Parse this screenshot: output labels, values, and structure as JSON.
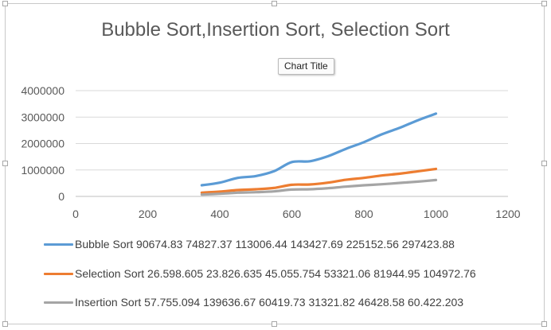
{
  "chart_data": {
    "type": "line",
    "title": "Bubble Sort,Insertion Sort, Selection Sort",
    "tooltip": "Chart Title",
    "xlabel": "",
    "ylabel": "",
    "xlim": [
      0,
      1200
    ],
    "ylim": [
      0,
      4000000
    ],
    "x_ticks": [
      "0",
      "200",
      "400",
      "600",
      "800",
      "1000",
      "1200"
    ],
    "y_ticks": [
      "0",
      "1000000",
      "2000000",
      "3000000",
      "4000000"
    ],
    "grid": true,
    "legend_position": "bottom",
    "series": [
      {
        "name": "Bubble Sort 90674.83 74827.37 113006.44 143427.69 225152.56 297423.88",
        "color": "#5b9bd5",
        "points": [
          [
            350,
            420000
          ],
          [
            400,
            520000
          ],
          [
            450,
            700000
          ],
          [
            500,
            770000
          ],
          [
            550,
            950000
          ],
          [
            600,
            1300000
          ],
          [
            650,
            1330000
          ],
          [
            700,
            1520000
          ],
          [
            750,
            1800000
          ],
          [
            800,
            2050000
          ],
          [
            850,
            2350000
          ],
          [
            900,
            2600000
          ],
          [
            950,
            2880000
          ],
          [
            1000,
            3130000
          ]
        ]
      },
      {
        "name": "Selection Sort 26.598.605 23.826.635 45.055.754 53321.06 81944.95 104972.76",
        "color": "#ed7d31",
        "points": [
          [
            350,
            140000
          ],
          [
            400,
            180000
          ],
          [
            450,
            240000
          ],
          [
            500,
            270000
          ],
          [
            550,
            320000
          ],
          [
            600,
            440000
          ],
          [
            650,
            450000
          ],
          [
            700,
            520000
          ],
          [
            750,
            630000
          ],
          [
            800,
            700000
          ],
          [
            850,
            790000
          ],
          [
            900,
            860000
          ],
          [
            950,
            950000
          ],
          [
            1000,
            1040000
          ]
        ]
      },
      {
        "name": "Insertion Sort 57.755.094 139636.67 60419.73 31321.82 46428.58 60.422.203",
        "color": "#a5a5a5",
        "points": [
          [
            350,
            70000
          ],
          [
            400,
            100000
          ],
          [
            450,
            140000
          ],
          [
            500,
            160000
          ],
          [
            550,
            190000
          ],
          [
            600,
            260000
          ],
          [
            650,
            270000
          ],
          [
            700,
            310000
          ],
          [
            750,
            370000
          ],
          [
            800,
            420000
          ],
          [
            850,
            460000
          ],
          [
            900,
            510000
          ],
          [
            950,
            560000
          ],
          [
            1000,
            620000
          ]
        ]
      }
    ]
  }
}
